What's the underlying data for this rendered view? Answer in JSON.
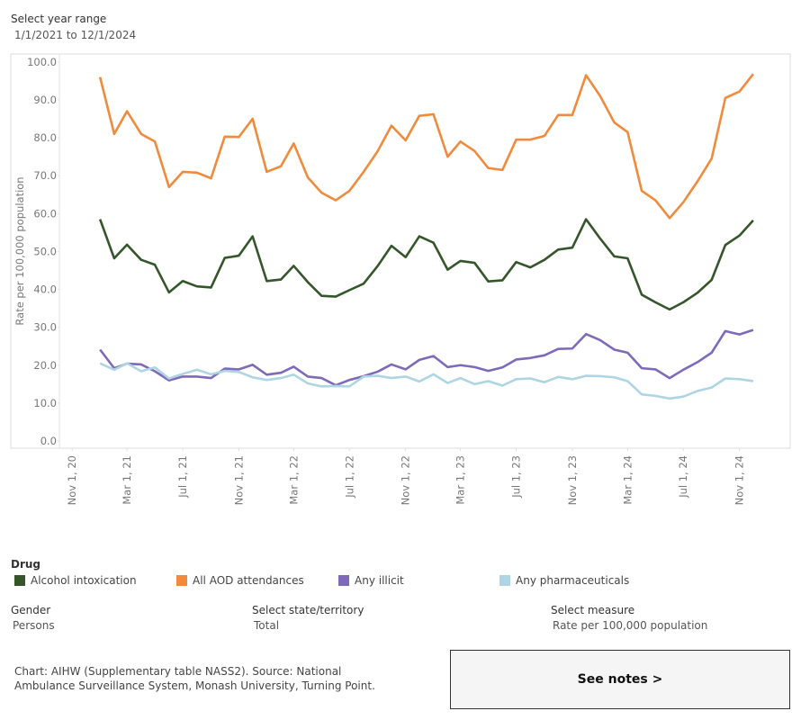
{
  "filters": {
    "year_range": {
      "label": "Select year range",
      "value": "1/1/2021 to 12/1/2024"
    },
    "gender": {
      "label": "Gender",
      "value": "Persons"
    },
    "state": {
      "label": "Select state/territory",
      "value": "Total"
    },
    "measure": {
      "label": "Select measure",
      "value": "Rate per 100,000 population"
    }
  },
  "chart_data": {
    "type": "line",
    "y_label": "Rate per 100,000 population",
    "legend_title": "Drug",
    "x": [
      "2021-01-01",
      "2021-02-01",
      "2021-03-01",
      "2021-04-01",
      "2021-05-01",
      "2021-06-01",
      "2021-07-01",
      "2021-08-01",
      "2021-09-01",
      "2021-10-01",
      "2021-11-01",
      "2021-12-01",
      "2022-01-01",
      "2022-02-01",
      "2022-03-01",
      "2022-04-01",
      "2022-05-01",
      "2022-06-01",
      "2022-07-01",
      "2022-08-01",
      "2022-09-01",
      "2022-10-01",
      "2022-11-01",
      "2022-12-01",
      "2023-01-01",
      "2023-02-01",
      "2023-03-01",
      "2023-04-01",
      "2023-05-01",
      "2023-06-01",
      "2023-07-01",
      "2023-08-01",
      "2023-09-01",
      "2023-10-01",
      "2023-11-01",
      "2023-12-01",
      "2024-01-01",
      "2024-02-01",
      "2024-03-01",
      "2024-04-01",
      "2024-05-01",
      "2024-06-01",
      "2024-07-01",
      "2024-08-01",
      "2024-09-01",
      "2024-10-01",
      "2024-11-01",
      "2024-12-01"
    ],
    "xlim": [
      "2020-10-04",
      "2025-02-20"
    ],
    "xticks": [
      {
        "value": "2020-11-01",
        "label": "Nov 1, 20"
      },
      {
        "value": "2021-03-01",
        "label": "Mar 1, 21"
      },
      {
        "value": "2021-07-01",
        "label": "Jul 1, 21"
      },
      {
        "value": "2021-11-01",
        "label": "Nov 1, 21"
      },
      {
        "value": "2022-03-01",
        "label": "Mar 1, 22"
      },
      {
        "value": "2022-07-01",
        "label": "Jul 1, 22"
      },
      {
        "value": "2022-11-01",
        "label": "Nov 1, 22"
      },
      {
        "value": "2023-03-01",
        "label": "Mar 1, 23"
      },
      {
        "value": "2023-07-01",
        "label": "Jul 1, 23"
      },
      {
        "value": "2023-11-01",
        "label": "Nov 1, 23"
      },
      {
        "value": "2024-03-01",
        "label": "Mar 1, 24"
      },
      {
        "value": "2024-07-01",
        "label": "Jul 1, 24"
      },
      {
        "value": "2024-11-01",
        "label": "Nov 1, 24"
      }
    ],
    "ylim": [
      -1.9,
      102.1
    ],
    "yticks": [
      {
        "value": 0,
        "label": "0.0"
      },
      {
        "value": 10,
        "label": "10.0"
      },
      {
        "value": 20,
        "label": "20.0"
      },
      {
        "value": 30,
        "label": "30.0"
      },
      {
        "value": 40,
        "label": "40.0"
      },
      {
        "value": 50,
        "label": "50.0"
      },
      {
        "value": 60,
        "label": "60.0"
      },
      {
        "value": 70,
        "label": "70.0"
      },
      {
        "value": 80,
        "label": "80.0"
      },
      {
        "value": 90,
        "label": "90.0"
      },
      {
        "value": 100,
        "label": "100.0"
      }
    ],
    "grid": false,
    "series": [
      {
        "name": "Alcohol intoxication",
        "color": "#35562b",
        "values": [
          58.5,
          48.2,
          51.8,
          47.8,
          46.5,
          39.2,
          42.2,
          40.8,
          40.5,
          48.3,
          48.9,
          54,
          42.2,
          42.6,
          46.2,
          41.9,
          38.3,
          38.1,
          39.8,
          41.5,
          46.2,
          51.5,
          48.5,
          54,
          52.3,
          45.2,
          47.5,
          47,
          42.1,
          42.4,
          47.2,
          45.8,
          47.8,
          50.5,
          51,
          58.5,
          53.4,
          48.7,
          48.2,
          38.6,
          36.6,
          34.7,
          36.6,
          39.1,
          42.5,
          51.7,
          54.2,
          58.2
        ]
      },
      {
        "name": "All AOD attendances",
        "color": "#f28a3c",
        "values": [
          96,
          81,
          87,
          81,
          79,
          67,
          71,
          70.8,
          69.3,
          80.3,
          80.2,
          85,
          71,
          72.5,
          78.5,
          69.5,
          65.5,
          63.5,
          66,
          71,
          76.5,
          83.2,
          79.3,
          85.8,
          86.2,
          75,
          79,
          76.5,
          72,
          71.5,
          79.5,
          79.5,
          80.5,
          86,
          86,
          96.5,
          91,
          84,
          81.5,
          66,
          63.5,
          58.8,
          63,
          68.5,
          74.5,
          90.5,
          92.2,
          96.8
        ]
      },
      {
        "name": "Any illicit",
        "color": "#7e6ab8",
        "values": [
          24.1,
          19.2,
          20.4,
          20.2,
          18.4,
          16,
          17,
          17,
          16.6,
          19.1,
          18.9,
          20.1,
          17.5,
          18,
          19.6,
          17,
          16.6,
          14.7,
          16.1,
          17.1,
          18.3,
          20.2,
          18.9,
          21.4,
          22.4,
          19.5,
          20,
          19.5,
          18.5,
          19.4,
          21.5,
          21.9,
          22.6,
          24.3,
          24.4,
          28.2,
          26.6,
          24.1,
          23.3,
          19.2,
          18.9,
          16.6,
          18.8,
          20.8,
          23.3,
          29,
          28.1,
          29.3
        ]
      },
      {
        "name": "Any pharmaceuticals",
        "color": "#aed5e3",
        "values": [
          20.5,
          18.8,
          20.5,
          18.4,
          19.4,
          16.5,
          17.7,
          18.8,
          17.6,
          18.5,
          18.2,
          16.8,
          16.1,
          16.6,
          17.5,
          15.2,
          14.4,
          14.5,
          14.4,
          17,
          17.2,
          16.6,
          17,
          15.7,
          17.6,
          15.3,
          16.6,
          15,
          15.8,
          14.6,
          16.3,
          16.5,
          15.5,
          16.9,
          16.3,
          17.2,
          17.1,
          16.8,
          15.8,
          12.3,
          11.9,
          11.2,
          11.7,
          13.2,
          14.1,
          16.5,
          16.3,
          15.8
        ]
      }
    ]
  },
  "footer": {
    "source": "Chart: AIHW (Supplementary table NASS2). Source: National Ambulance Surveillance System, Monash University, Turning Point.",
    "button": "See notes >"
  }
}
